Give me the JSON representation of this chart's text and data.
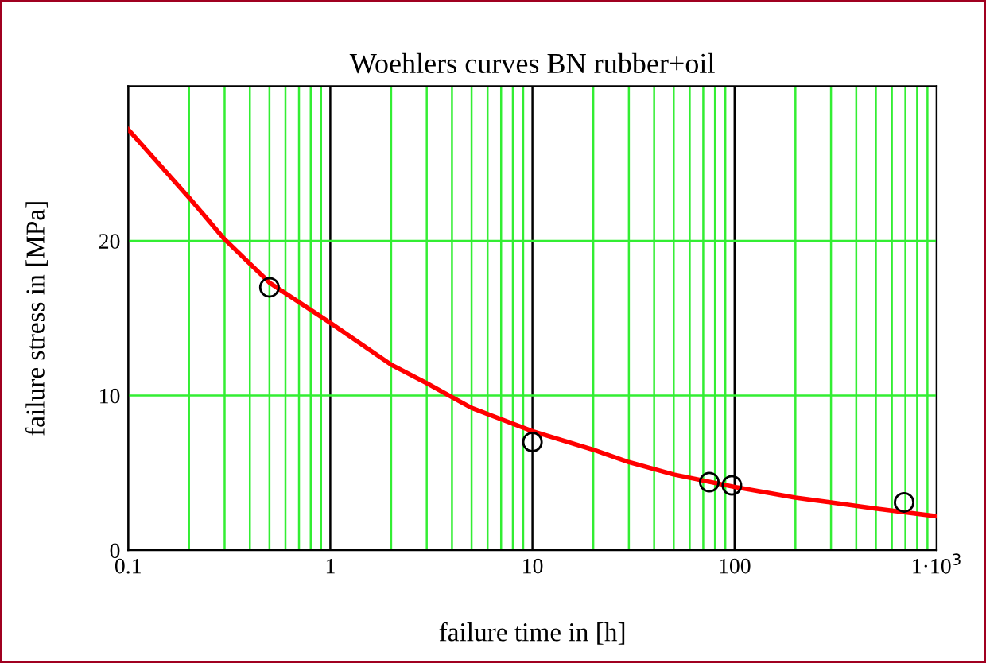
{
  "chart_data": {
    "type": "line",
    "title": "Woehlers curves BN rubber+oil",
    "xlabel": "failure time in [h]",
    "ylabel": "failure stress in [MPa]",
    "log": "x",
    "xlim": [
      0.1,
      1000
    ],
    "ylim": [
      0,
      30
    ],
    "xticks": [
      0.1,
      {
        "value": 0.2,
        "label": null
      },
      {
        "value": 0.3,
        "label": null
      },
      {
        "value": 0.4,
        "label": null
      },
      {
        "value": 0.5,
        "label": null
      },
      {
        "value": 0.6,
        "label": null
      },
      {
        "value": 0.7,
        "label": null
      },
      {
        "value": 0.8,
        "label": null
      },
      {
        "value": 0.9,
        "label": null
      },
      1,
      {
        "value": 2,
        "label": null
      },
      {
        "value": 3,
        "label": null
      },
      {
        "value": 4,
        "label": null
      },
      {
        "value": 5,
        "label": null
      },
      {
        "value": 6,
        "label": null
      },
      {
        "value": 7,
        "label": null
      },
      {
        "value": 8,
        "label": null
      },
      {
        "value": 9,
        "label": null
      },
      10,
      {
        "value": 20,
        "label": null
      },
      {
        "value": 30,
        "label": null
      },
      {
        "value": 40,
        "label": null
      },
      {
        "value": 50,
        "label": null
      },
      {
        "value": 60,
        "label": null
      },
      {
        "value": 70,
        "label": null
      },
      {
        "value": 80,
        "label": null
      },
      {
        "value": 90,
        "label": null
      },
      100,
      {
        "value": 200,
        "label": null
      },
      {
        "value": 300,
        "label": null
      },
      {
        "value": 400,
        "label": null
      },
      {
        "value": 500,
        "label": null
      },
      {
        "value": 600,
        "label": null
      },
      {
        "value": 700,
        "label": null
      },
      {
        "value": 800,
        "label": null
      },
      {
        "value": 900,
        "label": null
      },
      {
        "value": 1000,
        "label": "1·10$^{3}$"
      }
    ],
    "yticks": [
      0,
      10,
      20
    ],
    "grid": true,
    "series": [
      {
        "color": "#ff0000",
        "line_style": "solid",
        "marker": "none",
        "x": [
          0.1,
          0.2,
          0.3,
          0.5,
          1,
          2,
          3,
          5,
          10,
          20,
          30,
          50,
          100,
          200,
          300,
          500,
          1000
        ],
        "values": [
          27.2,
          22.8,
          20.1,
          17.3,
          14.7,
          12.0,
          10.8,
          9.2,
          7.7,
          6.5,
          5.7,
          4.9,
          4.1,
          3.4,
          3.1,
          2.7,
          2.2
        ]
      },
      {
        "type": "scatter",
        "color": "#000000",
        "marker": "circle",
        "x": [
          0.5,
          10,
          75,
          97,
          690
        ],
        "values": [
          17,
          7,
          4.4,
          4.2,
          3.1
        ]
      }
    ]
  }
}
